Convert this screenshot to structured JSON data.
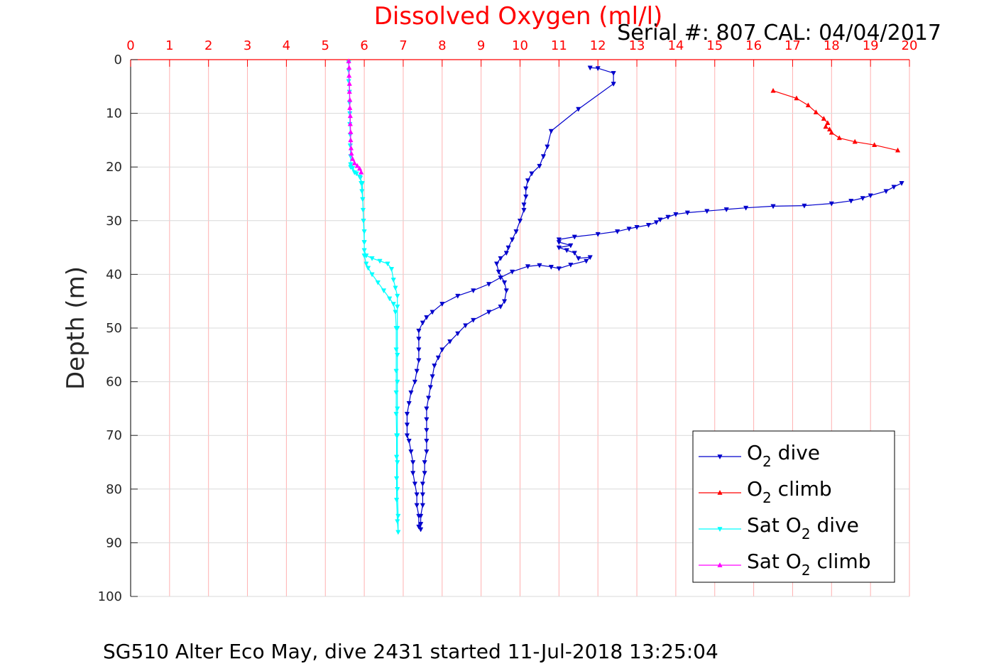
{
  "chart_data": {
    "type": "line",
    "xlabel": "Dissolved Oxygen (ml/l)",
    "ylabel": "Depth (m)",
    "serial_text": "Serial #: 807  CAL: 04/04/2017",
    "footer_text": "SG510 Alter Eco May, dive 2431 started 11-Jul-2018 13:25:04",
    "xlim": [
      0,
      20
    ],
    "ylim": [
      0,
      100
    ],
    "x_axis_location": "top",
    "y_axis_reversed": true,
    "grid": true,
    "legend_position": "bottom-right",
    "xticks": [
      0,
      1,
      2,
      3,
      4,
      5,
      6,
      7,
      8,
      9,
      10,
      11,
      12,
      13,
      14,
      15,
      16,
      17,
      18,
      19,
      20
    ],
    "yticks": [
      0,
      10,
      20,
      30,
      40,
      50,
      60,
      70,
      80,
      90,
      100
    ],
    "colors": {
      "xaxis": "#ff0000",
      "grid_x": "#ffb0b0",
      "grid_y": "#d9d9d9"
    },
    "series": [
      {
        "name": "O",
        "name_sub": "2",
        "name_suffix": " dive",
        "color": "#0000cc",
        "marker": "triangle-down",
        "points": [
          [
            11.8,
            1.5
          ],
          [
            12.0,
            1.6
          ],
          [
            12.4,
            2.5
          ],
          [
            12.4,
            4.5
          ],
          [
            11.5,
            9.2
          ],
          [
            10.8,
            13.3
          ],
          [
            10.7,
            16.2
          ],
          [
            10.6,
            18.0
          ],
          [
            10.5,
            19.8
          ],
          [
            10.3,
            21.2
          ],
          [
            10.2,
            22.5
          ],
          [
            10.15,
            24.0
          ],
          [
            10.15,
            25.5
          ],
          [
            10.1,
            27.0
          ],
          [
            10.1,
            28.0
          ],
          [
            10.0,
            30.0
          ],
          [
            9.9,
            32.0
          ],
          [
            9.8,
            33.5
          ],
          [
            9.7,
            35.0
          ],
          [
            9.65,
            36.0
          ],
          [
            9.5,
            37.0
          ],
          [
            9.4,
            38.0
          ],
          [
            9.45,
            39.5
          ],
          [
            9.6,
            41.5
          ],
          [
            9.65,
            43.0
          ],
          [
            9.6,
            45.0
          ],
          [
            9.5,
            46.0
          ],
          [
            9.2,
            47.0
          ],
          [
            8.8,
            48.5
          ],
          [
            8.6,
            49.5
          ],
          [
            8.4,
            51.0
          ],
          [
            8.2,
            52.5
          ],
          [
            8.0,
            54.0
          ],
          [
            7.9,
            55.5
          ],
          [
            7.8,
            57.0
          ],
          [
            7.75,
            59.0
          ],
          [
            7.7,
            61.0
          ],
          [
            7.65,
            63.0
          ],
          [
            7.6,
            65.0
          ],
          [
            7.6,
            67.0
          ],
          [
            7.6,
            69.0
          ],
          [
            7.6,
            71.0
          ],
          [
            7.6,
            73.0
          ],
          [
            7.55,
            75.0
          ],
          [
            7.55,
            77.0
          ],
          [
            7.5,
            79.0
          ],
          [
            7.5,
            81.0
          ],
          [
            7.5,
            83.0
          ],
          [
            7.45,
            85.0
          ],
          [
            7.45,
            86.5
          ],
          [
            7.45,
            87.5
          ],
          [
            7.4,
            87.0
          ],
          [
            7.4,
            85.0
          ],
          [
            7.35,
            83.0
          ],
          [
            7.35,
            81.0
          ],
          [
            7.3,
            79.0
          ],
          [
            7.25,
            77.0
          ],
          [
            7.25,
            75.0
          ],
          [
            7.2,
            73.0
          ],
          [
            7.15,
            71.0
          ],
          [
            7.1,
            70.0
          ],
          [
            7.1,
            68.0
          ],
          [
            7.1,
            66.0
          ],
          [
            7.15,
            64.0
          ],
          [
            7.2,
            62.0
          ],
          [
            7.3,
            60.0
          ],
          [
            7.35,
            58.0
          ],
          [
            7.4,
            56.0
          ],
          [
            7.4,
            54.0
          ],
          [
            7.4,
            52.0
          ],
          [
            7.4,
            50.5
          ],
          [
            7.5,
            49.0
          ],
          [
            7.6,
            48.0
          ],
          [
            7.75,
            47.0
          ],
          [
            8.0,
            45.5
          ],
          [
            8.4,
            44.0
          ],
          [
            8.8,
            43.0
          ],
          [
            9.2,
            41.8
          ],
          [
            9.5,
            40.6
          ],
          [
            9.8,
            39.5
          ],
          [
            10.2,
            38.5
          ],
          [
            10.5,
            38.3
          ],
          [
            10.8,
            38.6
          ],
          [
            11.0,
            38.9
          ],
          [
            11.3,
            38.2
          ],
          [
            11.7,
            37.5
          ],
          [
            11.8,
            36.8
          ],
          [
            11.5,
            37.0
          ],
          [
            11.4,
            36.0
          ],
          [
            11.2,
            35.5
          ],
          [
            11.0,
            35.0
          ],
          [
            11.3,
            34.6
          ],
          [
            11.0,
            34.0
          ],
          [
            11.0,
            33.5
          ],
          [
            11.4,
            33.0
          ],
          [
            12.0,
            32.5
          ],
          [
            12.5,
            32.0
          ],
          [
            12.8,
            31.5
          ],
          [
            13.0,
            31.2
          ],
          [
            13.3,
            30.8
          ],
          [
            13.5,
            30.3
          ],
          [
            13.6,
            29.8
          ],
          [
            13.8,
            29.3
          ],
          [
            14.0,
            28.8
          ],
          [
            14.3,
            28.5
          ],
          [
            14.8,
            28.2
          ],
          [
            15.3,
            27.9
          ],
          [
            15.8,
            27.6
          ],
          [
            16.5,
            27.3
          ],
          [
            17.3,
            27.2
          ],
          [
            18.0,
            26.8
          ],
          [
            18.5,
            26.3
          ],
          [
            18.8,
            25.8
          ],
          [
            19.0,
            25.3
          ],
          [
            19.4,
            24.5
          ],
          [
            19.6,
            23.7
          ],
          [
            19.8,
            23.0
          ]
        ]
      },
      {
        "name": "O",
        "name_sub": "2",
        "name_suffix": " climb",
        "color": "#ff0000",
        "marker": "triangle-up",
        "points": [
          [
            16.5,
            5.8
          ],
          [
            17.1,
            7.2
          ],
          [
            17.4,
            8.5
          ],
          [
            17.6,
            9.8
          ],
          [
            17.8,
            11.0
          ],
          [
            17.9,
            11.8
          ],
          [
            17.85,
            12.5
          ],
          [
            17.95,
            13.0
          ],
          [
            18.0,
            13.6
          ],
          [
            18.2,
            14.6
          ],
          [
            18.6,
            15.3
          ],
          [
            19.1,
            15.9
          ],
          [
            19.7,
            16.9
          ]
        ]
      },
      {
        "name": "Sat O",
        "name_sub": "2",
        "name_suffix": " dive",
        "color": "#00ffff",
        "marker": "triangle-down",
        "points": [
          [
            5.6,
            0.5
          ],
          [
            5.6,
            2.0
          ],
          [
            5.6,
            4.0
          ],
          [
            5.62,
            6.0
          ],
          [
            5.62,
            8.0
          ],
          [
            5.63,
            10.0
          ],
          [
            5.63,
            12.0
          ],
          [
            5.64,
            14.0
          ],
          [
            5.64,
            16.0
          ],
          [
            5.65,
            18.0
          ],
          [
            5.65,
            19.5
          ],
          [
            5.7,
            20.2
          ],
          [
            5.8,
            21.2
          ],
          [
            5.9,
            22.0
          ],
          [
            5.92,
            23.0
          ],
          [
            5.94,
            24.5
          ],
          [
            5.96,
            26.0
          ],
          [
            5.97,
            28.0
          ],
          [
            5.98,
            30.0
          ],
          [
            6.0,
            32.0
          ],
          [
            6.0,
            34.0
          ],
          [
            6.0,
            35.5
          ],
          [
            6.05,
            36.5
          ],
          [
            6.2,
            37.0
          ],
          [
            6.4,
            37.5
          ],
          [
            6.6,
            38.0
          ],
          [
            6.7,
            39.0
          ],
          [
            6.75,
            41.0
          ],
          [
            6.8,
            42.5
          ],
          [
            6.85,
            44.0
          ],
          [
            6.85,
            46.0
          ],
          [
            6.85,
            50.0
          ],
          [
            6.85,
            55.0
          ],
          [
            6.85,
            60.0
          ],
          [
            6.85,
            65.0
          ],
          [
            6.85,
            70.0
          ],
          [
            6.85,
            75.0
          ],
          [
            6.85,
            80.0
          ],
          [
            6.87,
            85.0
          ],
          [
            6.87,
            88.0
          ],
          [
            6.85,
            86.0
          ],
          [
            6.83,
            82.0
          ],
          [
            6.83,
            78.0
          ],
          [
            6.83,
            74.0
          ],
          [
            6.83,
            70.0
          ],
          [
            6.82,
            66.0
          ],
          [
            6.82,
            62.0
          ],
          [
            6.82,
            58.0
          ],
          [
            6.82,
            54.0
          ],
          [
            6.82,
            50.0
          ],
          [
            6.8,
            47.0
          ],
          [
            6.75,
            45.5
          ],
          [
            6.65,
            44.5
          ],
          [
            6.5,
            43.0
          ],
          [
            6.35,
            41.5
          ],
          [
            6.2,
            40.0
          ],
          [
            6.1,
            38.8
          ],
          [
            6.05,
            38.0
          ],
          [
            6.0,
            36.5
          ],
          [
            6.0,
            34.0
          ],
          [
            5.98,
            30.0
          ],
          [
            5.96,
            26.0
          ],
          [
            5.95,
            23.0
          ],
          [
            5.88,
            21.8
          ],
          [
            5.75,
            21.0
          ],
          [
            5.65,
            20.0
          ]
        ]
      },
      {
        "name": "Sat O",
        "name_sub": "2",
        "name_suffix": " climb",
        "color": "#ff00ff",
        "marker": "triangle-up",
        "points": [
          [
            5.6,
            0.3
          ],
          [
            5.61,
            1.5
          ],
          [
            5.61,
            3.0
          ],
          [
            5.62,
            4.5
          ],
          [
            5.62,
            6.0
          ],
          [
            5.63,
            7.5
          ],
          [
            5.63,
            9.0
          ],
          [
            5.64,
            10.5
          ],
          [
            5.64,
            12.0
          ],
          [
            5.65,
            13.5
          ],
          [
            5.65,
            15.0
          ],
          [
            5.66,
            16.5
          ],
          [
            5.67,
            17.5
          ],
          [
            5.7,
            18.5
          ],
          [
            5.75,
            19.3
          ],
          [
            5.82,
            19.8
          ],
          [
            5.88,
            20.3
          ],
          [
            5.92,
            21.0
          ]
        ]
      }
    ]
  }
}
